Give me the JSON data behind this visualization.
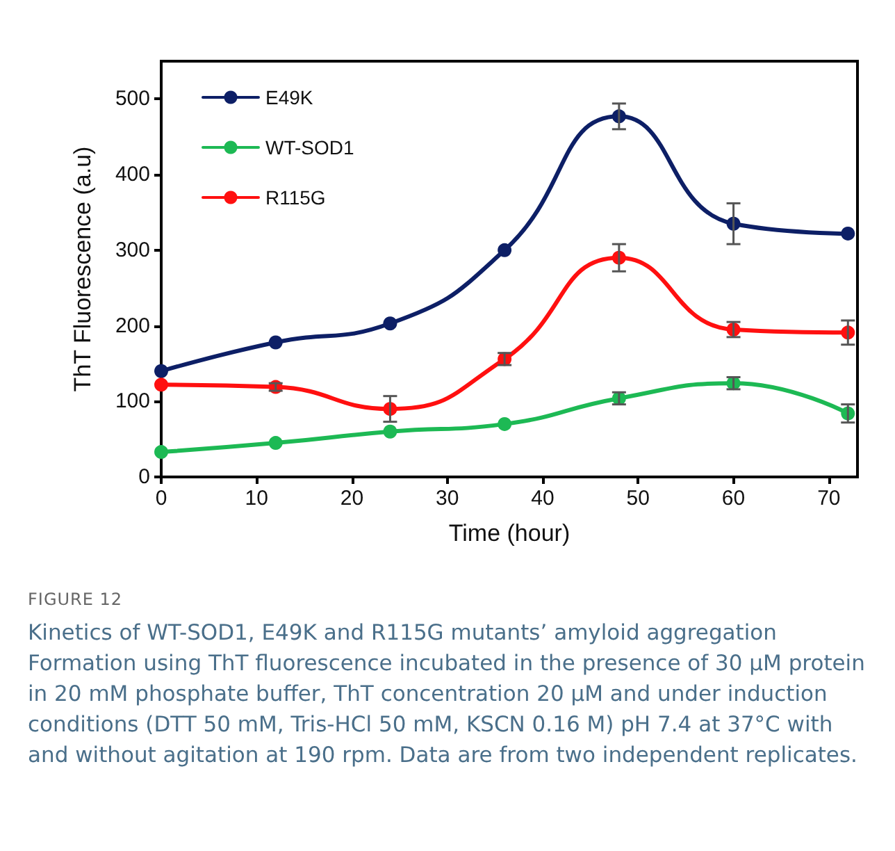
{
  "chart_data": {
    "type": "line",
    "xlabel": "Time (hour)",
    "ylabel": "ThT Fluorescence (a.u)",
    "x": [
      0,
      12,
      24,
      36,
      48,
      60,
      72
    ],
    "series": [
      {
        "name": "E49K",
        "color": "#0d1f66",
        "values": [
          140,
          178,
          203,
          300,
          477,
          335,
          322
        ],
        "errors": [
          null,
          null,
          null,
          null,
          17,
          27,
          null
        ]
      },
      {
        "name": "WT-SOD1",
        "color": "#1db954",
        "values": [
          33,
          45,
          60,
          70,
          104,
          124,
          84
        ],
        "errors": [
          null,
          null,
          null,
          null,
          8,
          8,
          12
        ]
      },
      {
        "name": "R115G",
        "color": "#ff1010",
        "values": [
          122,
          119,
          90,
          156,
          290,
          195,
          191
        ],
        "errors": [
          null,
          5,
          17,
          8,
          18,
          10,
          16
        ]
      }
    ],
    "xlim": [
      0,
      73
    ],
    "xticks": [
      0,
      10,
      20,
      30,
      40,
      50,
      60,
      70
    ],
    "ylim": [
      0,
      550
    ],
    "yticks": [
      0,
      100,
      200,
      300,
      400,
      500
    ],
    "grid": false,
    "legend": "top left",
    "marker": "circle",
    "line_style": "solid",
    "annotations": [
      "FIGURE 12",
      "Kinetics of WT-SOD1, E49K and R115G mutants’ amyloid aggregation Formation using ThT fluorescence incubated in the presence of 30 μM protein in 20 mM phosphate buffer, ThT concentration 20 μM and under induction conditions (DTT 50 mM, Tris-HCl 50 mM, KSCN 0.16 M) pH 7.4 at 37°C with and without agitation at 190 rpm. Data are from two independent replicates."
    ]
  }
}
